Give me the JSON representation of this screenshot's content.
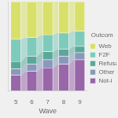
{
  "chart_data": {
    "type": "bar",
    "stacked": true,
    "xlabel": "Wave",
    "legend_title": "Outcom",
    "categories": [
      "5",
      "6",
      "7",
      "8",
      "9"
    ],
    "series": [
      {
        "name": "Not-i",
        "color": "#9966aa",
        "values": [
          0.18,
          0.22,
          0.26,
          0.3,
          0.35
        ]
      },
      {
        "name": "Other",
        "color": "#8899bb",
        "values": [
          0.07,
          0.08,
          0.09,
          0.09,
          0.08
        ]
      },
      {
        "name": "Refusal",
        "color": "#5ba89a",
        "values": [
          0.08,
          0.09,
          0.09,
          0.08,
          0.07
        ]
      },
      {
        "name": "F2F",
        "color": "#7ecbbb",
        "values": [
          0.25,
          0.21,
          0.19,
          0.18,
          0.17
        ]
      },
      {
        "name": "Web",
        "color": "#d8e06a",
        "values": [
          0.42,
          0.4,
          0.37,
          0.35,
          0.33
        ]
      }
    ],
    "ylim": [
      0,
      1
    ],
    "yticks": [],
    "grid": false,
    "legend": "right",
    "tick_labels": "x"
  }
}
